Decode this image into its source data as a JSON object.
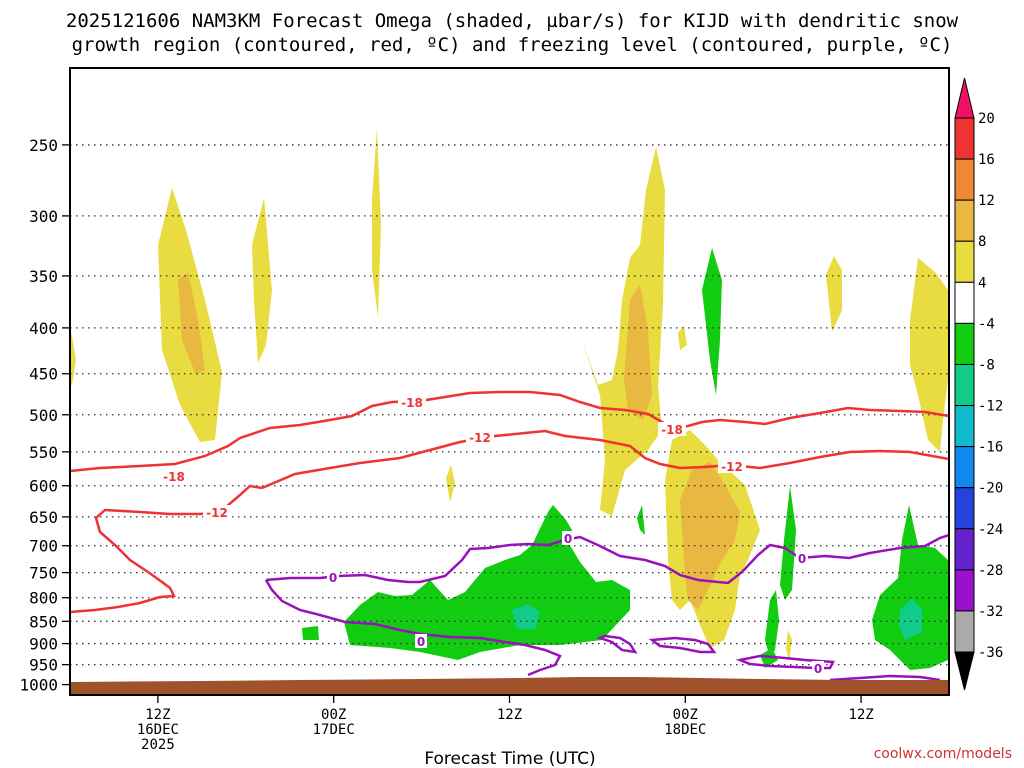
{
  "chart_data": {
    "type": "time-height cross section",
    "title_line1": "2025121606 NAM3KM Forecast Omega (shaded, µbar/s) for KIJD with dendritic snow",
    "title_line2": "growth region (contoured, red, ºC) and freezing level (contoured, purple, ºC)",
    "xlabel": "Forecast Time (UTC)",
    "credit": "coolwx.com/models",
    "y_axis": {
      "unit": "hPa",
      "ticks": [
        "250",
        "300",
        "350",
        "400",
        "450",
        "500",
        "550",
        "600",
        "650",
        "700",
        "750",
        "800",
        "850",
        "900",
        "950",
        "1000"
      ]
    },
    "x_axis": {
      "ticks": [
        {
          "hour": 6,
          "line1": "12Z",
          "line2": "16DEC",
          "line3": "2025"
        },
        {
          "hour": 18,
          "line1": "00Z",
          "line2": "17DEC",
          "line3": ""
        },
        {
          "hour": 30,
          "line1": "12Z",
          "line2": "",
          "line3": ""
        },
        {
          "hour": 42,
          "line1": "00Z",
          "line2": "18DEC",
          "line3": ""
        },
        {
          "hour": 54,
          "line1": "12Z",
          "line2": "",
          "line3": ""
        }
      ],
      "range_hours": [
        0,
        60
      ]
    },
    "colorbar": {
      "labels": [
        "20",
        "16",
        "12",
        "8",
        "4",
        "-4",
        "-8",
        "-12",
        "-16",
        "-20",
        "-24",
        "-28",
        "-32",
        "-36"
      ],
      "colors": [
        "#ee1166",
        "#ee3333",
        "#ee8833",
        "#e8b840",
        "#e8dc40",
        "#ffffff",
        "#11cc11",
        "#11cc88",
        "#11bbcc",
        "#1188ee",
        "#2244dd",
        "#6622cc",
        "#9911cc",
        "#aaaaaa",
        "#000000"
      ]
    },
    "contours": {
      "snow_growth_labels": [
        "-18",
        "-12",
        "-18",
        "-12",
        "-18",
        "-12"
      ],
      "freezing_labels": [
        "0",
        "0",
        "0",
        "0",
        "0"
      ]
    },
    "colors": {
      "snow_growth": "#ee3333",
      "freezing": "#9911bb",
      "terrain": "#a0522d",
      "credit": "#cc3333"
    }
  }
}
